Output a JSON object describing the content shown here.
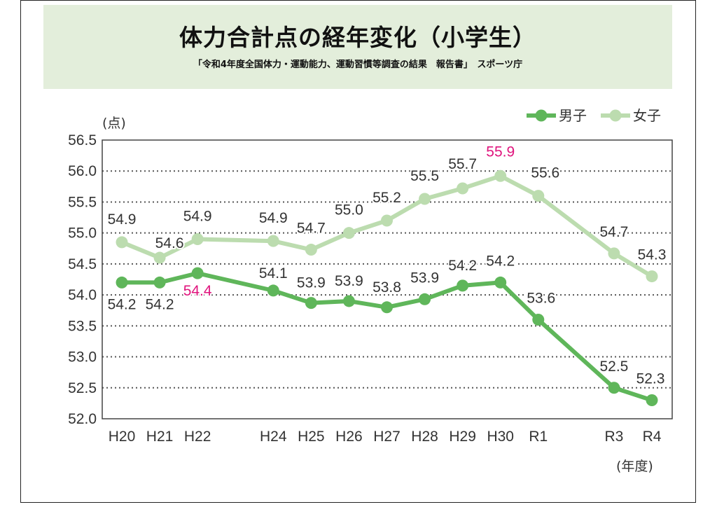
{
  "header": {
    "title": "体力合計点の経年変化（小学生）",
    "subtitle": "「令和4年度全国体力・運動能力、運動習慣等調査の結果　報告書」　スポーツ庁"
  },
  "chart_data": {
    "type": "line",
    "title": "体力合計点の経年変化（小学生）",
    "ylabel": "(点)",
    "xlabel": "(年度)",
    "ylim": [
      52.0,
      56.5
    ],
    "yticks": [
      "52.0",
      "52.5",
      "53.0",
      "53.5",
      "54.0",
      "54.5",
      "55.0",
      "55.5",
      "56.0",
      "56.5"
    ],
    "categories": [
      "H20",
      "H21",
      "H22",
      "H24",
      "H25",
      "H26",
      "H27",
      "H28",
      "H29",
      "H30",
      "R1",
      "R3",
      "R4"
    ],
    "legend_position": "top-right",
    "grid": "dotted horizontal",
    "highlight_color": "#e0147d",
    "series": [
      {
        "name": "男子",
        "color": "#5fb65a",
        "values": [
          54.2,
          54.2,
          54.35,
          54.07,
          53.87,
          53.9,
          53.8,
          53.93,
          54.15,
          54.2,
          53.6,
          52.5,
          52.3
        ],
        "labels": [
          "54.2",
          "54.2",
          "54.4",
          "54.1",
          "53.9",
          "53.9",
          "53.8",
          "53.9",
          "54.2",
          "54.2",
          "53.6",
          "52.5",
          "52.3"
        ],
        "highlight": [
          false,
          false,
          true,
          false,
          false,
          false,
          false,
          false,
          false,
          false,
          false,
          false,
          false
        ]
      },
      {
        "name": "女子",
        "color": "#bcdcaf",
        "values": [
          54.85,
          54.6,
          54.9,
          54.87,
          54.73,
          55.0,
          55.2,
          55.55,
          55.72,
          55.92,
          55.6,
          54.67,
          54.3
        ],
        "labels": [
          "54.9",
          "54.6",
          "54.9",
          "54.9",
          "54.7",
          "55.0",
          "55.2",
          "55.5",
          "55.7",
          "55.9",
          "55.6",
          "54.7",
          "54.3"
        ],
        "highlight": [
          false,
          false,
          false,
          false,
          false,
          false,
          false,
          false,
          false,
          true,
          false,
          false,
          false
        ]
      }
    ]
  }
}
